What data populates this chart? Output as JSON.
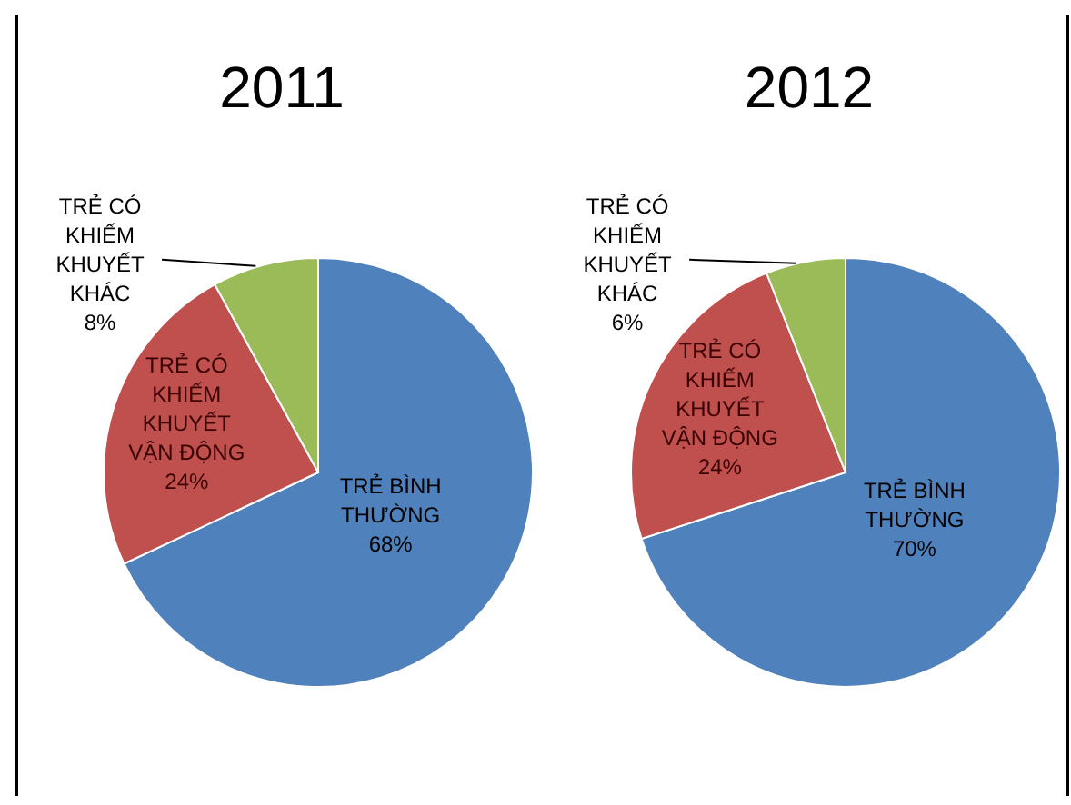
{
  "chart_data": [
    {
      "type": "pie",
      "title": "2011",
      "categories": [
        "TRẺ BÌNH THƯỜNG",
        "TRẺ CÓ KHIẾM KHUYẾT VẬN ĐỘNG",
        "TRẺ CÓ KHIẾM KHUYẾT KHÁC"
      ],
      "values": [
        68,
        24,
        8
      ],
      "value_labels": [
        "68%",
        "24%",
        "8%"
      ],
      "colors": [
        "#4f81bd",
        "#c0504d",
        "#9bbb59"
      ]
    },
    {
      "type": "pie",
      "title": "2012",
      "categories": [
        "TRẺ BÌNH THƯỜNG",
        "TRẺ CÓ KHIẾM KHUYẾT VẬN ĐỘNG",
        "TRẺ CÓ KHIẾM KHUYẾT KHÁC"
      ],
      "values": [
        70,
        24,
        6
      ],
      "value_labels": [
        "70%",
        "24%",
        "6%"
      ],
      "colors": [
        "#4f81bd",
        "#c0504d",
        "#9bbb59"
      ]
    }
  ]
}
